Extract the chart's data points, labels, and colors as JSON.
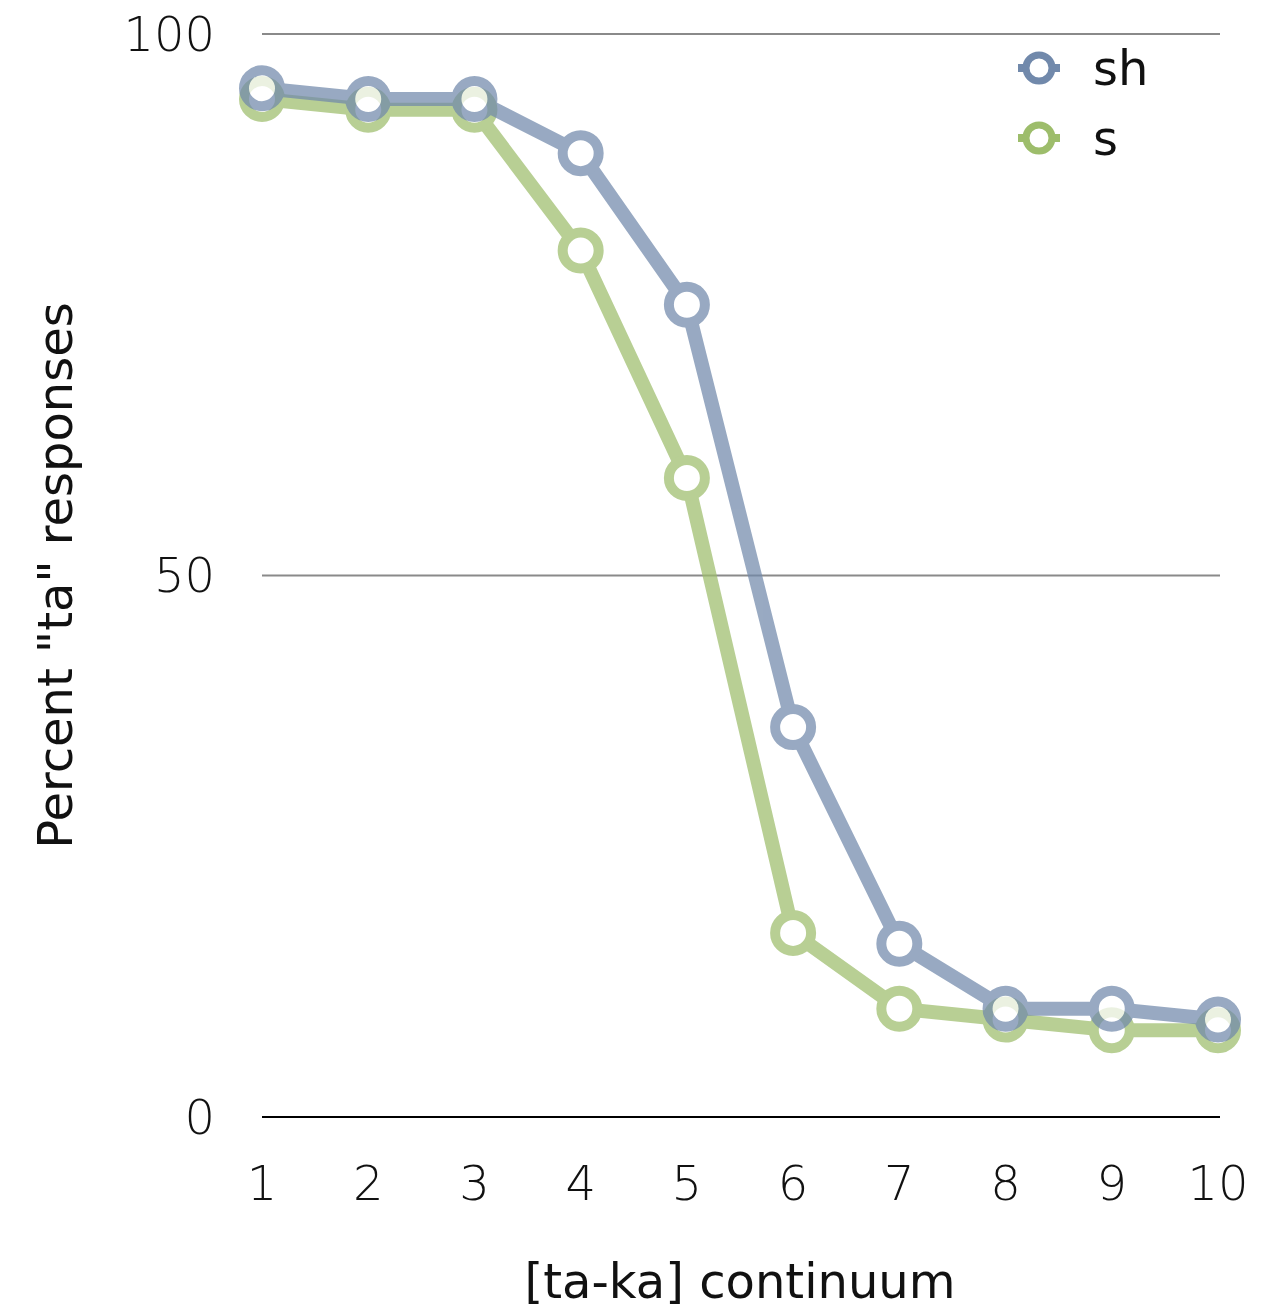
{
  "chart_data": {
    "type": "line",
    "xlabel": "[ta-ka] continuum",
    "ylabel": "Percent \"ta\" responses",
    "categories": [
      "1",
      "2",
      "3",
      "4",
      "5",
      "6",
      "7",
      "8",
      "9",
      "10"
    ],
    "series": [
      {
        "name": "sh",
        "color": "#7189ab",
        "values": [
          95,
          94,
          94,
          89,
          75,
          36,
          16,
          10,
          10,
          9
        ]
      },
      {
        "name": "s",
        "color": "#9dbd6b",
        "values": [
          94,
          93,
          93,
          80,
          59,
          17,
          10,
          9,
          8,
          8
        ]
      }
    ],
    "ylim": [
      0,
      100
    ],
    "yticks": [
      0,
      50,
      100
    ],
    "grid": "y",
    "legend": "top right",
    "marker": "circle",
    "line_style": "solid"
  }
}
